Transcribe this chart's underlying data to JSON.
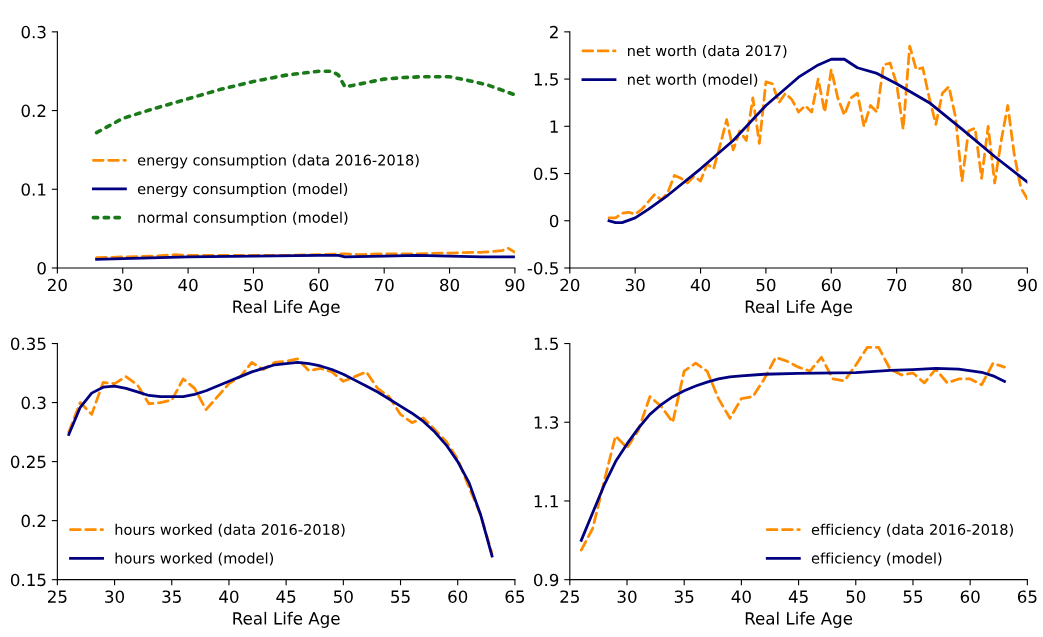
{
  "chart_data": [
    {
      "type": "line",
      "xlabel": "Real Life Age",
      "xlim": [
        20,
        90
      ],
      "xticks": [
        20,
        30,
        40,
        50,
        60,
        70,
        80,
        90
      ],
      "ylim": [
        0,
        0.3
      ],
      "yticks": [
        0,
        0.1,
        0.2,
        0.3
      ],
      "legend": "center left",
      "grid": false,
      "series": [
        {
          "name": "energy consumption (data 2016-2018)",
          "color": "#ff8c00",
          "line_style": "dashed",
          "x": [
            26,
            30,
            35,
            38,
            40,
            45,
            50,
            55,
            60,
            64,
            66,
            70,
            75,
            80,
            85,
            88,
            89,
            90
          ],
          "values": [
            0.013,
            0.014,
            0.015,
            0.017,
            0.016,
            0.016,
            0.016,
            0.016,
            0.017,
            0.018,
            0.017,
            0.018,
            0.018,
            0.019,
            0.02,
            0.022,
            0.025,
            0.02
          ]
        },
        {
          "name": "energy consumption (model)",
          "color": "#000080",
          "line_style": "solid",
          "x": [
            26,
            30,
            40,
            50,
            60,
            63,
            64,
            70,
            75,
            80,
            85,
            90
          ],
          "values": [
            0.011,
            0.012,
            0.014,
            0.015,
            0.016,
            0.016,
            0.014,
            0.015,
            0.016,
            0.015,
            0.014,
            0.014
          ]
        },
        {
          "name": "normal consumption (model)",
          "color": "#1a7a1a",
          "line_style": "dotted",
          "x": [
            26,
            30,
            35,
            40,
            45,
            50,
            55,
            60,
            62,
            63,
            64,
            67,
            70,
            73,
            76,
            80,
            83,
            86,
            88,
            90
          ],
          "values": [
            0.172,
            0.19,
            0.203,
            0.215,
            0.227,
            0.237,
            0.245,
            0.25,
            0.25,
            0.245,
            0.23,
            0.235,
            0.24,
            0.242,
            0.243,
            0.243,
            0.238,
            0.232,
            0.226,
            0.22
          ]
        }
      ]
    },
    {
      "type": "line",
      "xlabel": "Real Life Age",
      "xlim": [
        20,
        90
      ],
      "xticks": [
        20,
        30,
        40,
        50,
        60,
        70,
        80,
        90
      ],
      "ylim": [
        -0.5,
        2
      ],
      "yticks": [
        -0.5,
        0,
        0.5,
        1,
        1.5,
        2
      ],
      "legend": "top left",
      "grid": false,
      "series": [
        {
          "name": "net worth (data 2017)",
          "color": "#ff8c00",
          "line_style": "dashed",
          "x": [
            26,
            27,
            28,
            29,
            30,
            31,
            32,
            33,
            34,
            35,
            36,
            37,
            38,
            39,
            40,
            41,
            42,
            43,
            44,
            45,
            46,
            47,
            48,
            49,
            50,
            51,
            52,
            53,
            54,
            55,
            56,
            57,
            58,
            59,
            60,
            61,
            62,
            63,
            64,
            65,
            66,
            67,
            68,
            69,
            70,
            71,
            72,
            73,
            74,
            75,
            76,
            77,
            78,
            79,
            80,
            81,
            82,
            83,
            84,
            85,
            86,
            87,
            88,
            89,
            90
          ],
          "values": [
            0.03,
            0.03,
            0.08,
            0.09,
            0.07,
            0.12,
            0.2,
            0.28,
            0.22,
            0.3,
            0.48,
            0.45,
            0.4,
            0.47,
            0.42,
            0.6,
            0.55,
            0.8,
            1.07,
            0.75,
            0.95,
            0.85,
            1.3,
            0.82,
            1.47,
            1.45,
            1.25,
            1.35,
            1.28,
            1.15,
            1.22,
            1.15,
            1.5,
            1.15,
            1.6,
            1.3,
            1.12,
            1.3,
            1.35,
            1.0,
            1.22,
            1.15,
            1.65,
            1.67,
            1.45,
            0.97,
            1.85,
            1.6,
            1.62,
            1.3,
            1.02,
            1.35,
            1.42,
            1.1,
            0.42,
            0.95,
            0.98,
            0.45,
            1.0,
            0.4,
            0.85,
            1.22,
            0.7,
            0.35,
            0.23
          ]
        },
        {
          "name": "net worth (model)",
          "color": "#000080",
          "line_style": "solid",
          "x": [
            26,
            27,
            28,
            30,
            32,
            35,
            40,
            45,
            50,
            55,
            58,
            60,
            62,
            64,
            67,
            70,
            75,
            80,
            85,
            90
          ],
          "values": [
            0,
            -0.02,
            -0.02,
            0.03,
            0.12,
            0.27,
            0.55,
            0.85,
            1.22,
            1.52,
            1.65,
            1.71,
            1.71,
            1.62,
            1.56,
            1.45,
            1.25,
            0.97,
            0.68,
            0.41
          ]
        }
      ]
    },
    {
      "type": "line",
      "xlabel": "Real Life Age",
      "xlim": [
        25,
        65
      ],
      "xticks": [
        25,
        30,
        35,
        40,
        45,
        50,
        55,
        60,
        65
      ],
      "ylim": [
        0.15,
        0.35
      ],
      "yticks": [
        0.15,
        0.2,
        0.25,
        0.3,
        0.35
      ],
      "legend": "bottom left",
      "grid": false,
      "series": [
        {
          "name": "hours worked (data 2016-2018)",
          "color": "#ff8c00",
          "line_style": "dashed",
          "x": [
            26,
            27,
            28,
            29,
            30,
            31,
            32,
            33,
            34,
            35,
            36,
            37,
            38,
            39,
            40,
            41,
            42,
            43,
            44,
            45,
            46,
            47,
            48,
            49,
            50,
            51,
            52,
            53,
            54,
            55,
            56,
            57,
            58,
            59,
            60,
            61,
            62,
            63
          ],
          "values": [
            0.275,
            0.3,
            0.29,
            0.317,
            0.316,
            0.322,
            0.315,
            0.299,
            0.3,
            0.302,
            0.32,
            0.312,
            0.294,
            0.305,
            0.316,
            0.322,
            0.334,
            0.328,
            0.334,
            0.335,
            0.337,
            0.327,
            0.329,
            0.326,
            0.318,
            0.322,
            0.326,
            0.312,
            0.305,
            0.29,
            0.283,
            0.287,
            0.277,
            0.267,
            0.252,
            0.228,
            0.205,
            0.172
          ]
        },
        {
          "name": "hours worked (model)",
          "color": "#000080",
          "line_style": "solid",
          "x": [
            26,
            27,
            28,
            29,
            30,
            31,
            32,
            33,
            34,
            35,
            36,
            37,
            38,
            39,
            40,
            41,
            42,
            43,
            44,
            45,
            46,
            47,
            48,
            49,
            50,
            51,
            52,
            53,
            54,
            55,
            56,
            57,
            58,
            59,
            60,
            61,
            62,
            63
          ],
          "values": [
            0.273,
            0.296,
            0.308,
            0.313,
            0.314,
            0.312,
            0.309,
            0.306,
            0.305,
            0.305,
            0.305,
            0.307,
            0.31,
            0.314,
            0.318,
            0.322,
            0.326,
            0.329,
            0.332,
            0.333,
            0.334,
            0.333,
            0.331,
            0.328,
            0.324,
            0.319,
            0.314,
            0.309,
            0.303,
            0.297,
            0.291,
            0.284,
            0.275,
            0.264,
            0.25,
            0.232,
            0.205,
            0.17
          ]
        }
      ]
    },
    {
      "type": "line",
      "xlabel": "Real Life Age",
      "xlim": [
        25,
        65
      ],
      "xticks": [
        25,
        30,
        35,
        40,
        45,
        50,
        55,
        60,
        65
      ],
      "ylim": [
        0.9,
        1.5
      ],
      "yticks": [
        0.9,
        1.1,
        1.3,
        1.5
      ],
      "legend": "bottom right",
      "grid": false,
      "series": [
        {
          "name": "efficiency (data 2016-2018)",
          "color": "#ff8c00",
          "line_style": "dashed",
          "x": [
            26,
            27,
            28,
            29,
            30,
            31,
            32,
            33,
            34,
            35,
            36,
            37,
            38,
            39,
            40,
            41,
            42,
            43,
            44,
            45,
            46,
            47,
            48,
            49,
            50,
            51,
            52,
            53,
            54,
            55,
            56,
            57,
            58,
            59,
            60,
            61,
            62,
            63
          ],
          "values": [
            0.975,
            1.03,
            1.15,
            1.265,
            1.235,
            1.28,
            1.365,
            1.34,
            1.3,
            1.43,
            1.45,
            1.43,
            1.36,
            1.31,
            1.36,
            1.365,
            1.41,
            1.465,
            1.455,
            1.44,
            1.43,
            1.465,
            1.41,
            1.405,
            1.445,
            1.49,
            1.49,
            1.435,
            1.42,
            1.425,
            1.4,
            1.435,
            1.4,
            1.41,
            1.41,
            1.395,
            1.45,
            1.44
          ]
        },
        {
          "name": "efficiency (model)",
          "color": "#000080",
          "line_style": "solid",
          "x": [
            26,
            27,
            28,
            29,
            30,
            31,
            32,
            33,
            34,
            35,
            36,
            37,
            38,
            39,
            40,
            42,
            45,
            50,
            53,
            55,
            57,
            59,
            61,
            62,
            63
          ],
          "values": [
            1.0,
            1.07,
            1.14,
            1.2,
            1.245,
            1.285,
            1.32,
            1.345,
            1.365,
            1.38,
            1.392,
            1.402,
            1.41,
            1.415,
            1.418,
            1.422,
            1.424,
            1.426,
            1.432,
            1.434,
            1.437,
            1.435,
            1.427,
            1.418,
            1.404
          ]
        }
      ]
    }
  ]
}
